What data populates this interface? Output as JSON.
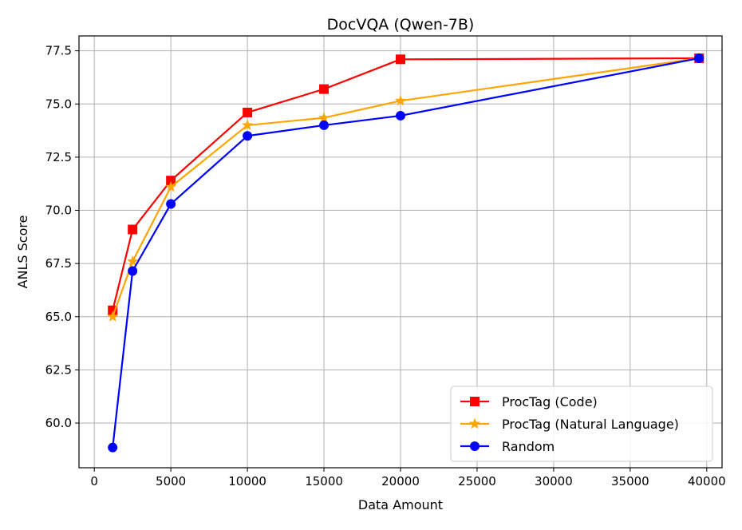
{
  "chart_data": {
    "type": "line",
    "title": "DocVQA (Qwen-7B)",
    "xlabel": "Data Amount",
    "ylabel": "ANLS Score",
    "xlim": [
      -1000,
      41000
    ],
    "ylim": [
      57.9,
      78.2
    ],
    "xticks": [
      0,
      5000,
      10000,
      15000,
      20000,
      25000,
      30000,
      35000,
      40000
    ],
    "xtick_labels": [
      "0",
      "5000",
      "10000",
      "15000",
      "20000",
      "25000",
      "30000",
      "35000",
      "40000"
    ],
    "yticks": [
      60.0,
      62.5,
      65.0,
      67.5,
      70.0,
      72.5,
      75.0,
      77.5
    ],
    "ytick_labels": [
      "60.0",
      "62.5",
      "65.0",
      "67.5",
      "70.0",
      "72.5",
      "75.0",
      "77.5"
    ],
    "grid": true,
    "legend_position": "bottom-right",
    "series": [
      {
        "name": "ProcTag (Code)",
        "color": "#ff0000",
        "marker": "square",
        "points": [
          [
            1200,
            65.3
          ],
          [
            2500,
            69.1
          ],
          [
            5000,
            71.4
          ],
          [
            10000,
            74.6
          ],
          [
            15000,
            75.7
          ],
          [
            20000,
            77.1
          ],
          [
            39500,
            77.15
          ]
        ]
      },
      {
        "name": "ProcTag (Natural Language)",
        "color": "#ffa500",
        "marker": "star",
        "points": [
          [
            1200,
            65.0
          ],
          [
            2500,
            67.6
          ],
          [
            5000,
            71.1
          ],
          [
            10000,
            74.0
          ],
          [
            15000,
            74.35
          ],
          [
            20000,
            75.15
          ],
          [
            39500,
            77.15
          ]
        ]
      },
      {
        "name": "Random",
        "color": "#0000ff",
        "marker": "circle",
        "points": [
          [
            1200,
            58.85
          ],
          [
            2500,
            67.15
          ],
          [
            5000,
            70.3
          ],
          [
            10000,
            73.5
          ],
          [
            15000,
            74.0
          ],
          [
            20000,
            74.45
          ],
          [
            39500,
            77.15
          ]
        ]
      }
    ]
  }
}
